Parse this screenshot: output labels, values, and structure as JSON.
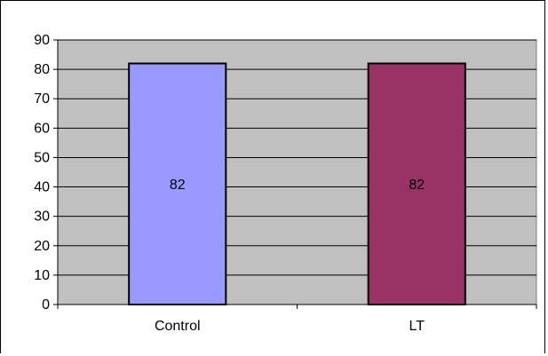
{
  "chart_data": {
    "type": "bar",
    "categories": [
      "Control",
      "LT"
    ],
    "values": [
      82,
      82
    ],
    "data_labels": [
      "82",
      "82"
    ],
    "title": "",
    "xlabel": "",
    "ylabel": "",
    "ylim": [
      0,
      90
    ],
    "yticks": [
      "0",
      "10",
      "20",
      "30",
      "40",
      "50",
      "60",
      "70",
      "80",
      "90"
    ],
    "grid": true,
    "legend": "none",
    "colors": {
      "plot_background": "#c0c0c0",
      "bars": [
        "#9999ff",
        "#993366"
      ],
      "bar_outline": "#000000",
      "gridlines": "#000000"
    }
  }
}
